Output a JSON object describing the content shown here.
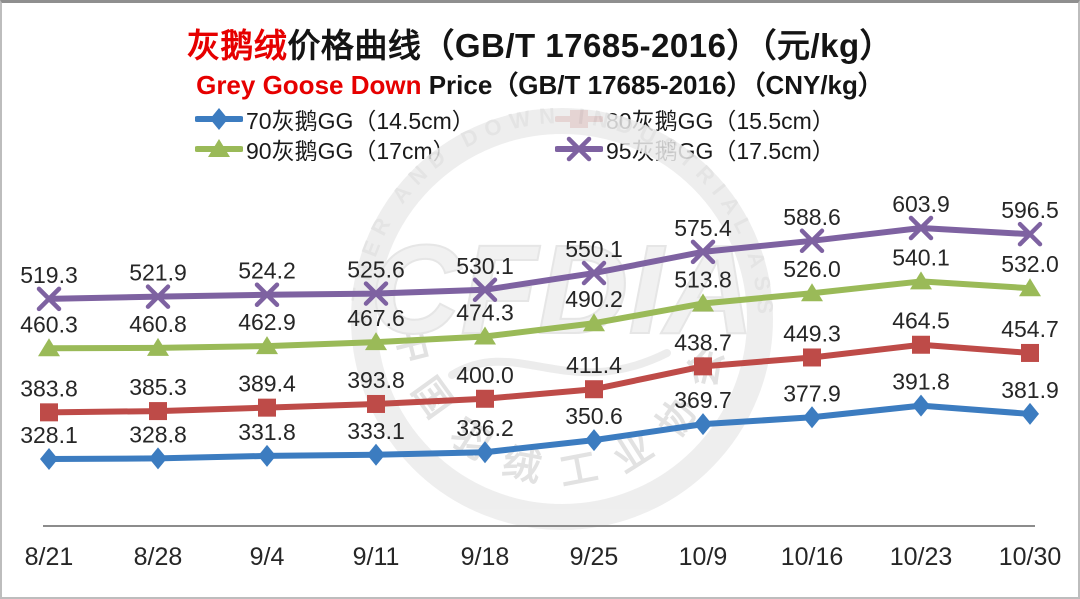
{
  "header": {
    "title_red": "灰鹅绒",
    "title_black": "价格曲线（GB/T 17685-2016）（元/kg）",
    "subtitle_red": "Grey Goose Down",
    "subtitle_black": " Price（GB/T 17685-2016）（CNY/kg）"
  },
  "watermark": {
    "center_text": "CFDIA",
    "arc_text_top": "CHINA FEATHER AND DOWN INDUSTRIAL ASSOCIATION",
    "arc_text_bottom": "中国羽绒工业协会"
  },
  "chart_data": {
    "type": "line",
    "title": "灰鹅绒价格曲线（GB/T 17685-2016）（元/kg）",
    "subtitle": "Grey Goose Down Price（GB/T 17685-2016）（CNY/kg）",
    "categories": [
      "8/21",
      "8/28",
      "9/4",
      "9/11",
      "9/18",
      "9/25",
      "10/9",
      "10/16",
      "10/23",
      "10/30"
    ],
    "series": [
      {
        "name": "70灰鹅GG（14.5cm）",
        "color": "#3c7cc0",
        "marker": "diamond",
        "values": [
          328.1,
          328.8,
          331.8,
          333.1,
          336.2,
          350.6,
          369.7,
          377.9,
          391.8,
          381.9
        ]
      },
      {
        "name": "80灰鹅GG（15.5cm）",
        "color": "#be4b48",
        "marker": "square",
        "values": [
          383.8,
          385.3,
          389.4,
          393.8,
          400.0,
          411.4,
          438.7,
          449.3,
          464.5,
          454.7
        ]
      },
      {
        "name": "90灰鹅GG（17cm）",
        "color": "#9aba58",
        "marker": "triangle",
        "values": [
          460.3,
          460.8,
          462.9,
          467.6,
          474.3,
          490.2,
          513.8,
          526.0,
          540.1,
          532.0
        ]
      },
      {
        "name": "95灰鹅GG（17.5cm）",
        "color": "#7e62a1",
        "marker": "x",
        "values": [
          519.3,
          521.9,
          524.2,
          525.6,
          530.1,
          550.1,
          575.4,
          588.6,
          603.9,
          596.5
        ]
      }
    ],
    "xlabel": "",
    "ylabel": "",
    "ylim": [
      248,
      660
    ],
    "grid": false,
    "y_axis_labels_visible": false,
    "data_labels": true,
    "data_label_decimals": 1,
    "legend_position": "top",
    "axis_color": "#8c8c8c",
    "label_color": "#262626"
  }
}
